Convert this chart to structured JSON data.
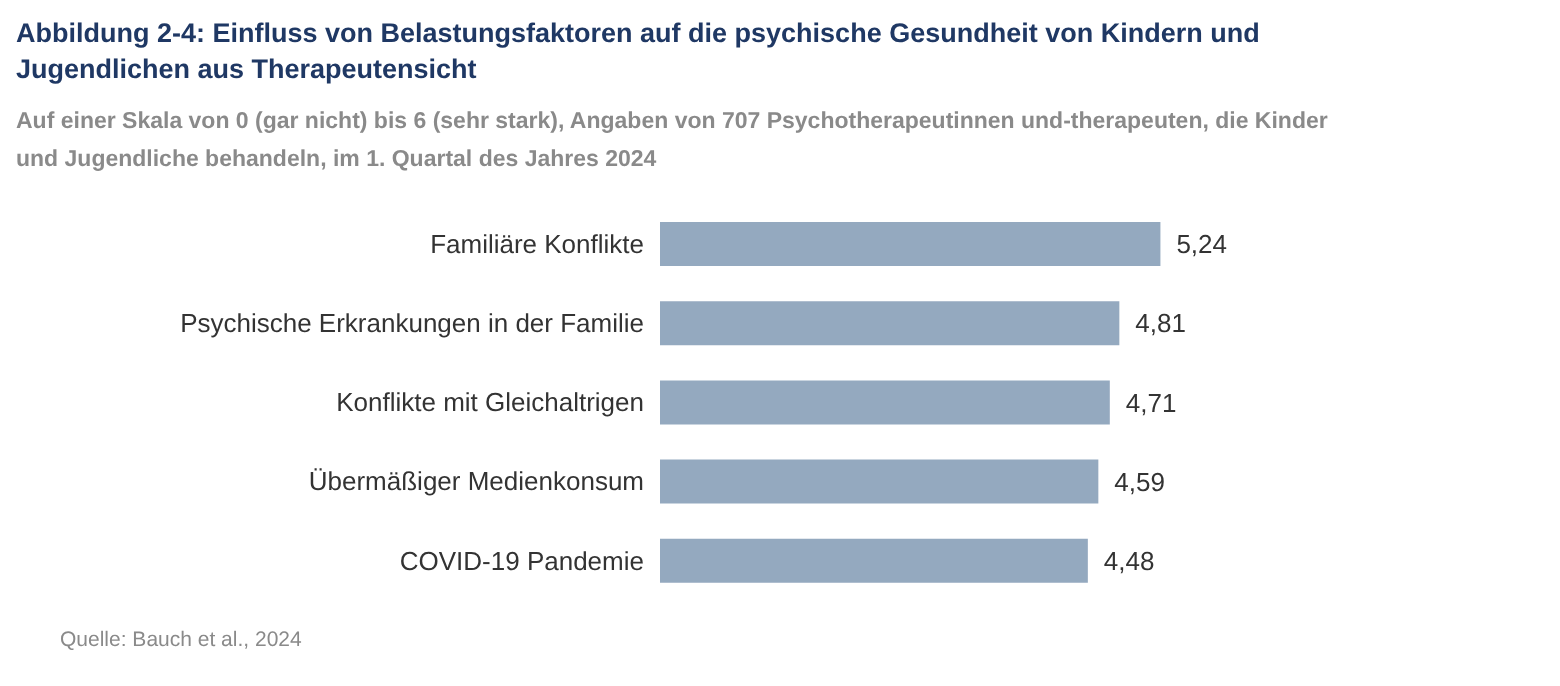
{
  "chart_data": {
    "type": "bar",
    "orientation": "horizontal",
    "title": "Abbildung 2-4: Einfluss von Belastungsfaktoren auf die psychische Gesundheit von Kindern und Jugendlichen aus Therapeutensicht",
    "subtitle": "Auf einer Skala von 0 (gar nicht) bis 6 (sehr stark), Angaben von 707 Psychotherapeutinnen und-therapeuten, die Kinder und Jugendliche behandeln, im 1. Quartal des Jahres 2024",
    "categories": [
      "Familiäre Konflikte",
      "Psychische Erkrankungen in der Familie",
      "Konflikte mit Gleichaltrigen",
      "Übermäßiger Medienkonsum",
      "COVID-19 Pandemie"
    ],
    "values": [
      5.24,
      4.81,
      4.71,
      4.59,
      4.48
    ],
    "value_labels": [
      "5,24",
      "4,81",
      "4,71",
      "4,59",
      "4,48"
    ],
    "color": "#94a9bf",
    "tick_labels": "y",
    "annotations": [
      "Quelle: Bauch et al., 2024"
    ]
  }
}
